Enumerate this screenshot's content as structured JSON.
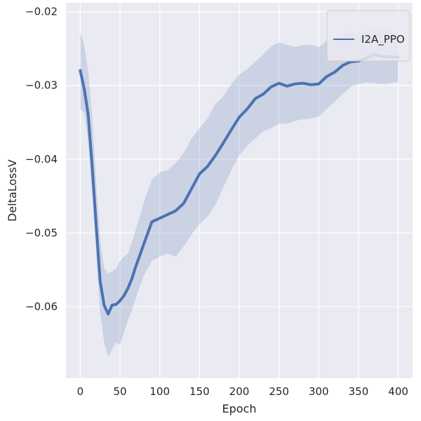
{
  "chart_data": {
    "type": "line",
    "title": "",
    "xlabel": "Epoch",
    "ylabel": "DeltaLossV",
    "xlim": [
      -18,
      418
    ],
    "ylim": [
      -0.0697,
      -0.0188
    ],
    "xticks": [
      0,
      50,
      100,
      150,
      200,
      250,
      300,
      350,
      400
    ],
    "xtick_labels": [
      "0",
      "50",
      "100",
      "150",
      "200",
      "250",
      "300",
      "350",
      "400"
    ],
    "yticks": [
      -0.06,
      -0.05,
      -0.04,
      -0.03,
      -0.02
    ],
    "ytick_labels": [
      "−0.06",
      "−0.05",
      "−0.04",
      "−0.03",
      "−0.02"
    ],
    "grid": true,
    "legend_position": "top-right",
    "colors": {
      "background": "#eaeaf2",
      "grid": "#ffffff",
      "line": "#4c72b0",
      "band": "#4c72b0"
    },
    "series": [
      {
        "name": "I2A_PPO",
        "x": [
          0,
          5,
          10,
          15,
          20,
          25,
          30,
          35,
          40,
          45,
          50,
          55,
          60,
          65,
          70,
          75,
          80,
          90,
          100,
          110,
          120,
          130,
          140,
          150,
          160,
          170,
          180,
          190,
          200,
          210,
          220,
          230,
          240,
          250,
          260,
          270,
          280,
          290,
          300,
          310,
          320,
          330,
          340,
          350,
          360,
          370,
          380,
          390,
          400
        ],
        "values": [
          -0.028,
          -0.0305,
          -0.034,
          -0.041,
          -0.049,
          -0.0565,
          -0.0598,
          -0.061,
          -0.0598,
          -0.0597,
          -0.0592,
          -0.0585,
          -0.0575,
          -0.0562,
          -0.0545,
          -0.053,
          -0.0515,
          -0.0485,
          -0.048,
          -0.0475,
          -0.047,
          -0.046,
          -0.044,
          -0.042,
          -0.041,
          -0.0395,
          -0.0378,
          -0.036,
          -0.0343,
          -0.0332,
          -0.0318,
          -0.0312,
          -0.0302,
          -0.0297,
          -0.0301,
          -0.0298,
          -0.0297,
          -0.0299,
          -0.0298,
          -0.0288,
          -0.0282,
          -0.0273,
          -0.0268,
          -0.0267,
          -0.0263,
          -0.0258,
          -0.0261,
          -0.0261,
          -0.0262
        ],
        "lower": [
          -0.0332,
          -0.0337,
          -0.0378,
          -0.0448,
          -0.0528,
          -0.0608,
          -0.0648,
          -0.0668,
          -0.0658,
          -0.0648,
          -0.0652,
          -0.0635,
          -0.0618,
          -0.0605,
          -0.0588,
          -0.0572,
          -0.0558,
          -0.0538,
          -0.0532,
          -0.0528,
          -0.0532,
          -0.0518,
          -0.0502,
          -0.0488,
          -0.0478,
          -0.0462,
          -0.0438,
          -0.0415,
          -0.0395,
          -0.0382,
          -0.0372,
          -0.0362,
          -0.0358,
          -0.0352,
          -0.0352,
          -0.0348,
          -0.0346,
          -0.0345,
          -0.0342,
          -0.0332,
          -0.0322,
          -0.0312,
          -0.0302,
          -0.0298,
          -0.0296,
          -0.0297,
          -0.0298,
          -0.0297,
          -0.0295
        ],
        "upper": [
          -0.0228,
          -0.0245,
          -0.0282,
          -0.0342,
          -0.0432,
          -0.0508,
          -0.0548,
          -0.0555,
          -0.0552,
          -0.0548,
          -0.0538,
          -0.0532,
          -0.0528,
          -0.0512,
          -0.0495,
          -0.0478,
          -0.0458,
          -0.0428,
          -0.0418,
          -0.0415,
          -0.0405,
          -0.0392,
          -0.0372,
          -0.0358,
          -0.0345,
          -0.0325,
          -0.0315,
          -0.0298,
          -0.0285,
          -0.0278,
          -0.0268,
          -0.0258,
          -0.0247,
          -0.0242,
          -0.0245,
          -0.0248,
          -0.0245,
          -0.0245,
          -0.0248,
          -0.024,
          -0.0238,
          -0.0232,
          -0.0226,
          -0.0228,
          -0.0226,
          -0.0222,
          -0.0225,
          -0.0226,
          -0.0227
        ]
      }
    ]
  }
}
